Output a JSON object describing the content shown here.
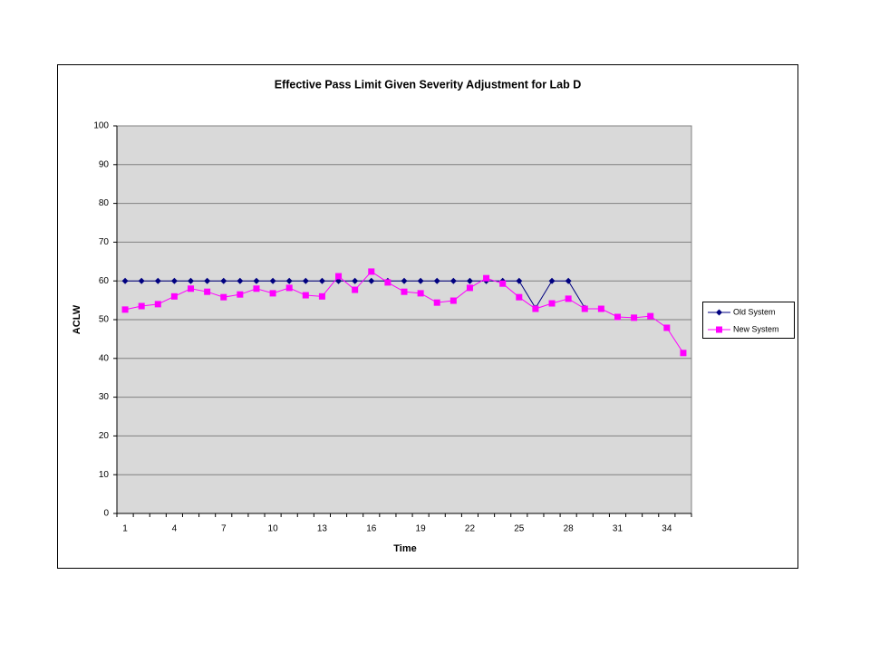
{
  "chart_data": {
    "type": "line",
    "title": "Effective Pass Limit Given Severity Adjustment for Lab  D",
    "x_label": "Time",
    "y_label": "ACLW",
    "categories": [
      1,
      null,
      null,
      4,
      null,
      null,
      7,
      null,
      null,
      10,
      null,
      null,
      13,
      null,
      null,
      16,
      null,
      null,
      19,
      null,
      null,
      22,
      null,
      null,
      25,
      null,
      null,
      28,
      null,
      null,
      31,
      null,
      null,
      34,
      null
    ],
    "series": [
      {
        "name": "Old System",
        "color": "#000080",
        "marker": "diamond",
        "values": [
          60,
          60,
          60,
          60,
          60,
          60,
          60,
          60,
          60,
          60,
          60,
          60,
          60,
          60,
          60,
          60,
          60,
          60,
          60,
          60,
          60,
          60,
          60,
          60,
          60,
          53,
          60,
          60,
          53,
          null,
          null,
          null,
          null,
          null,
          null
        ]
      },
      {
        "name": "New System",
        "color": "#ff00ff",
        "marker": "square",
        "values": [
          52.6,
          53.5,
          54,
          56,
          58,
          57.2,
          55.8,
          56.5,
          58,
          56.8,
          58.2,
          56.3,
          56,
          61.2,
          57.7,
          62.4,
          59.6,
          57.2,
          56.8,
          54.4,
          54.9,
          58.2,
          60.7,
          59.3,
          55.8,
          52.8,
          54.2,
          55.4,
          52.8,
          52.8,
          50.7,
          50.5,
          50.9,
          47.9,
          41.4
        ]
      }
    ],
    "ylim": [
      0,
      100
    ],
    "yticks": [
      0,
      10,
      20,
      30,
      40,
      50,
      60,
      70,
      80,
      90,
      100
    ],
    "grid": true,
    "legend": "right"
  }
}
